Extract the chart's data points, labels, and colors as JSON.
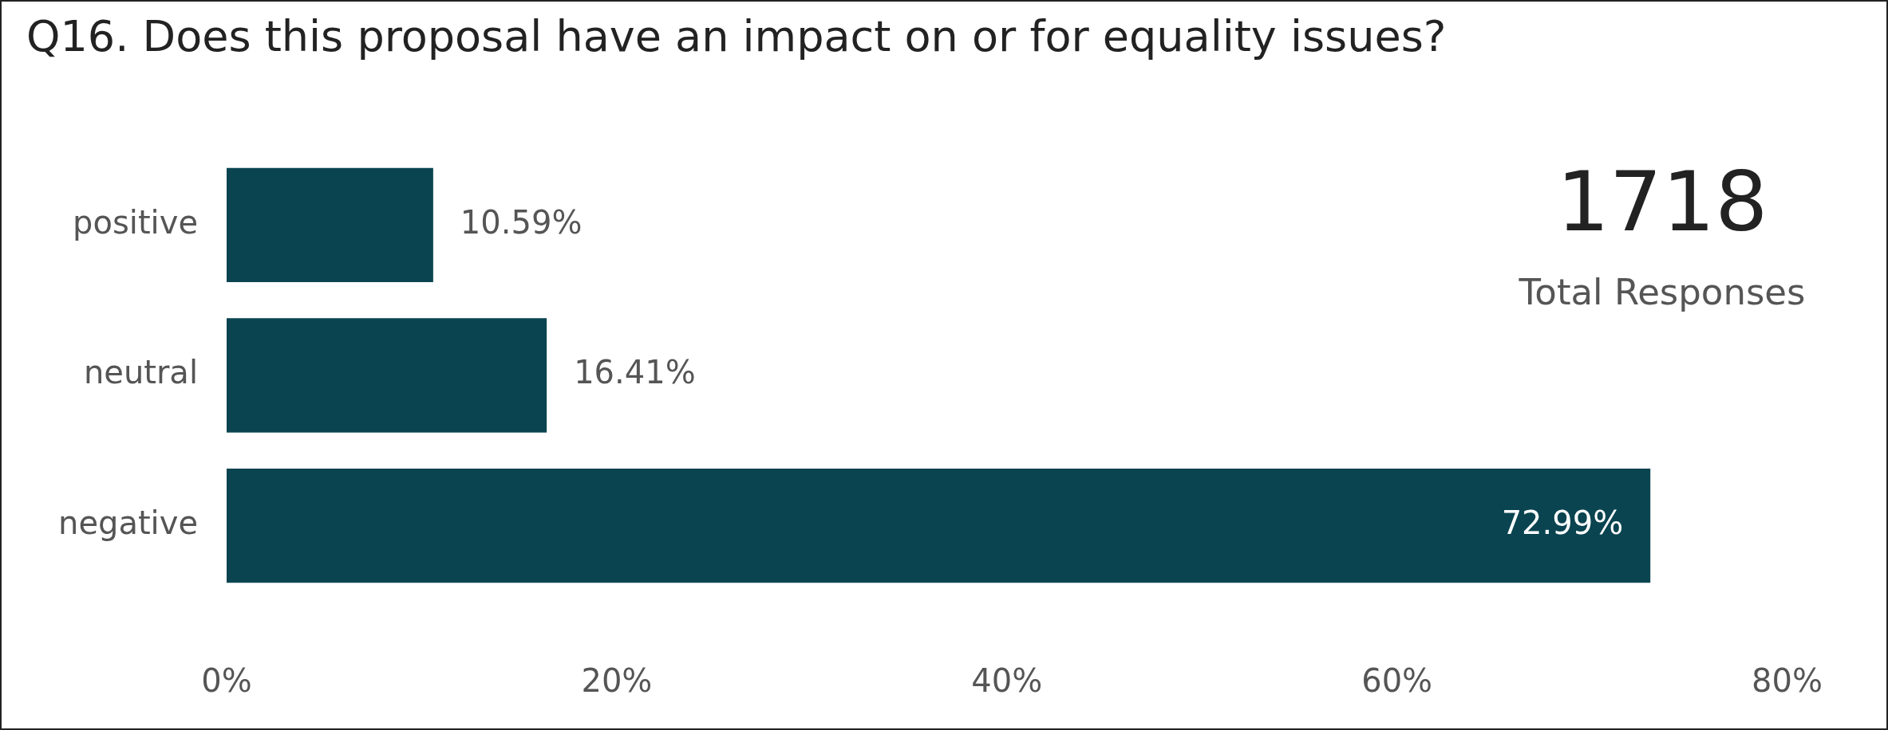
{
  "chart_data": {
    "type": "bar",
    "orientation": "horizontal",
    "title": "Q16. Does this proposal have an impact on or for equality issues?",
    "categories": [
      "positive",
      "neutral",
      "negative"
    ],
    "values": [
      10.59,
      16.41,
      72.99
    ],
    "value_labels": [
      "10.59%",
      "16.41%",
      "72.99%"
    ],
    "color": "#0a4450",
    "xlim": [
      0,
      80
    ],
    "xticks": [
      {
        "value": 0,
        "label": "0%"
      },
      {
        "value": 20,
        "label": "20%"
      },
      {
        "value": 40,
        "label": "40%"
      },
      {
        "value": 60,
        "label": "60%"
      },
      {
        "value": 80,
        "label": "80%"
      }
    ],
    "grid": false,
    "legend": false,
    "annotations": [
      "1718",
      "Total Responses"
    ]
  }
}
